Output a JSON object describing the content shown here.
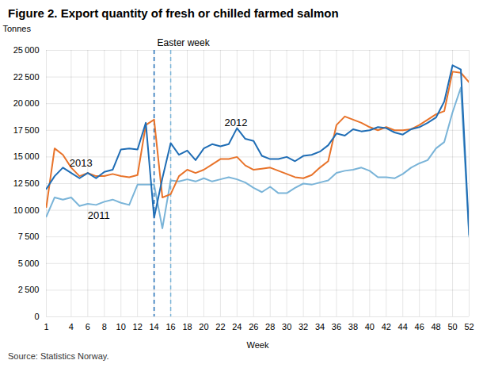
{
  "chart_data": {
    "type": "line",
    "title": "Figure 2. Export quantity of fresh or chilled farmed salmon",
    "xlabel": "Week",
    "ylabel": "Tonnes",
    "source": "Source: Statistics Norway.",
    "x": [
      1,
      2,
      3,
      4,
      5,
      6,
      7,
      8,
      9,
      10,
      11,
      12,
      13,
      14,
      15,
      16,
      17,
      18,
      19,
      20,
      21,
      22,
      23,
      24,
      25,
      26,
      27,
      28,
      29,
      30,
      31,
      32,
      33,
      34,
      35,
      36,
      37,
      38,
      39,
      40,
      41,
      42,
      43,
      44,
      45,
      46,
      47,
      48,
      49,
      50,
      51,
      52
    ],
    "series": [
      {
        "name": "2011",
        "color": "#7ab4d8",
        "line_style": "solid",
        "values": [
          9400,
          11200,
          11000,
          11200,
          10400,
          10600,
          10500,
          10800,
          11000,
          10700,
          10500,
          12400,
          12400,
          12400,
          8300,
          12800,
          12700,
          12900,
          12700,
          13000,
          12700,
          12900,
          13100,
          12900,
          12600,
          12100,
          11700,
          12200,
          11600,
          11600,
          12100,
          12500,
          12400,
          12600,
          12800,
          13500,
          13700,
          13800,
          14000,
          13700,
          13100,
          13100,
          13000,
          13400,
          14000,
          14400,
          14700,
          15800,
          16400,
          19200,
          21500,
          7500
        ]
      },
      {
        "name": "2013",
        "color": "#e8732a",
        "line_style": "solid",
        "values": [
          10300,
          15800,
          15200,
          14000,
          13200,
          13500,
          13200,
          13200,
          13400,
          13200,
          13100,
          13300,
          18000,
          18500,
          11200,
          11500,
          13200,
          13800,
          13500,
          13800,
          14300,
          14800,
          14800,
          15000,
          14200,
          13800,
          13900,
          14000,
          13700,
          13400,
          13100,
          13000,
          13300,
          14000,
          14600,
          18000,
          18800,
          18500,
          18200,
          17800,
          17500,
          17800,
          17500,
          17500,
          17600,
          18000,
          18500,
          19000,
          19300,
          23000,
          22900,
          22000
        ]
      },
      {
        "name": "2012",
        "color": "#1f6db5",
        "line_style": "solid",
        "values": [
          12000,
          13200,
          14000,
          13500,
          13000,
          13500,
          13000,
          13600,
          13800,
          15700,
          15800,
          15700,
          18200,
          9300,
          13000,
          16300,
          15200,
          15600,
          14700,
          15800,
          16200,
          16000,
          16200,
          17700,
          16700,
          16500,
          15100,
          14800,
          14800,
          15000,
          14600,
          15100,
          15200,
          15500,
          16100,
          17200,
          17000,
          17600,
          17400,
          17500,
          17800,
          17700,
          17300,
          17100,
          17600,
          17800,
          18200,
          18700,
          20200,
          23600,
          23200,
          7700
        ]
      }
    ],
    "vlines": [
      {
        "x": 14,
        "color": "#1f6db5",
        "line_style": "dashed"
      },
      {
        "x": 16,
        "color": "#7ab4d8",
        "line_style": "dashed"
      }
    ],
    "annotations": [
      {
        "text": "2013",
        "x": 3.8,
        "y": 14400
      },
      {
        "text": "2012",
        "x": 22.5,
        "y": 18200
      },
      {
        "text": "2011",
        "x": 6.0,
        "y": 9500
      },
      {
        "text": "Easter week",
        "x": 14
      }
    ],
    "xlim": [
      1,
      52
    ],
    "xticks": [
      1,
      4,
      6,
      8,
      10,
      12,
      14,
      16,
      18,
      20,
      22,
      24,
      26,
      28,
      30,
      32,
      34,
      36,
      38,
      40,
      42,
      44,
      46,
      48,
      50,
      52
    ],
    "ylim": [
      0,
      25000
    ],
    "yticks": [
      0,
      {
        "value": 2500,
        "label": "2 500"
      },
      {
        "value": 5000,
        "label": "5 000"
      },
      {
        "value": 7500,
        "label": "7 500"
      },
      {
        "value": 10000,
        "label": "10 000"
      },
      {
        "value": 12500,
        "label": "12 500"
      },
      {
        "value": 15000,
        "label": "15 000"
      },
      {
        "value": 17500,
        "label": "17 500"
      },
      {
        "value": 20000,
        "label": "20 000"
      },
      {
        "value": 22500,
        "label": "22 500"
      },
      {
        "value": 25000,
        "label": "25 000"
      }
    ],
    "grid": true
  }
}
